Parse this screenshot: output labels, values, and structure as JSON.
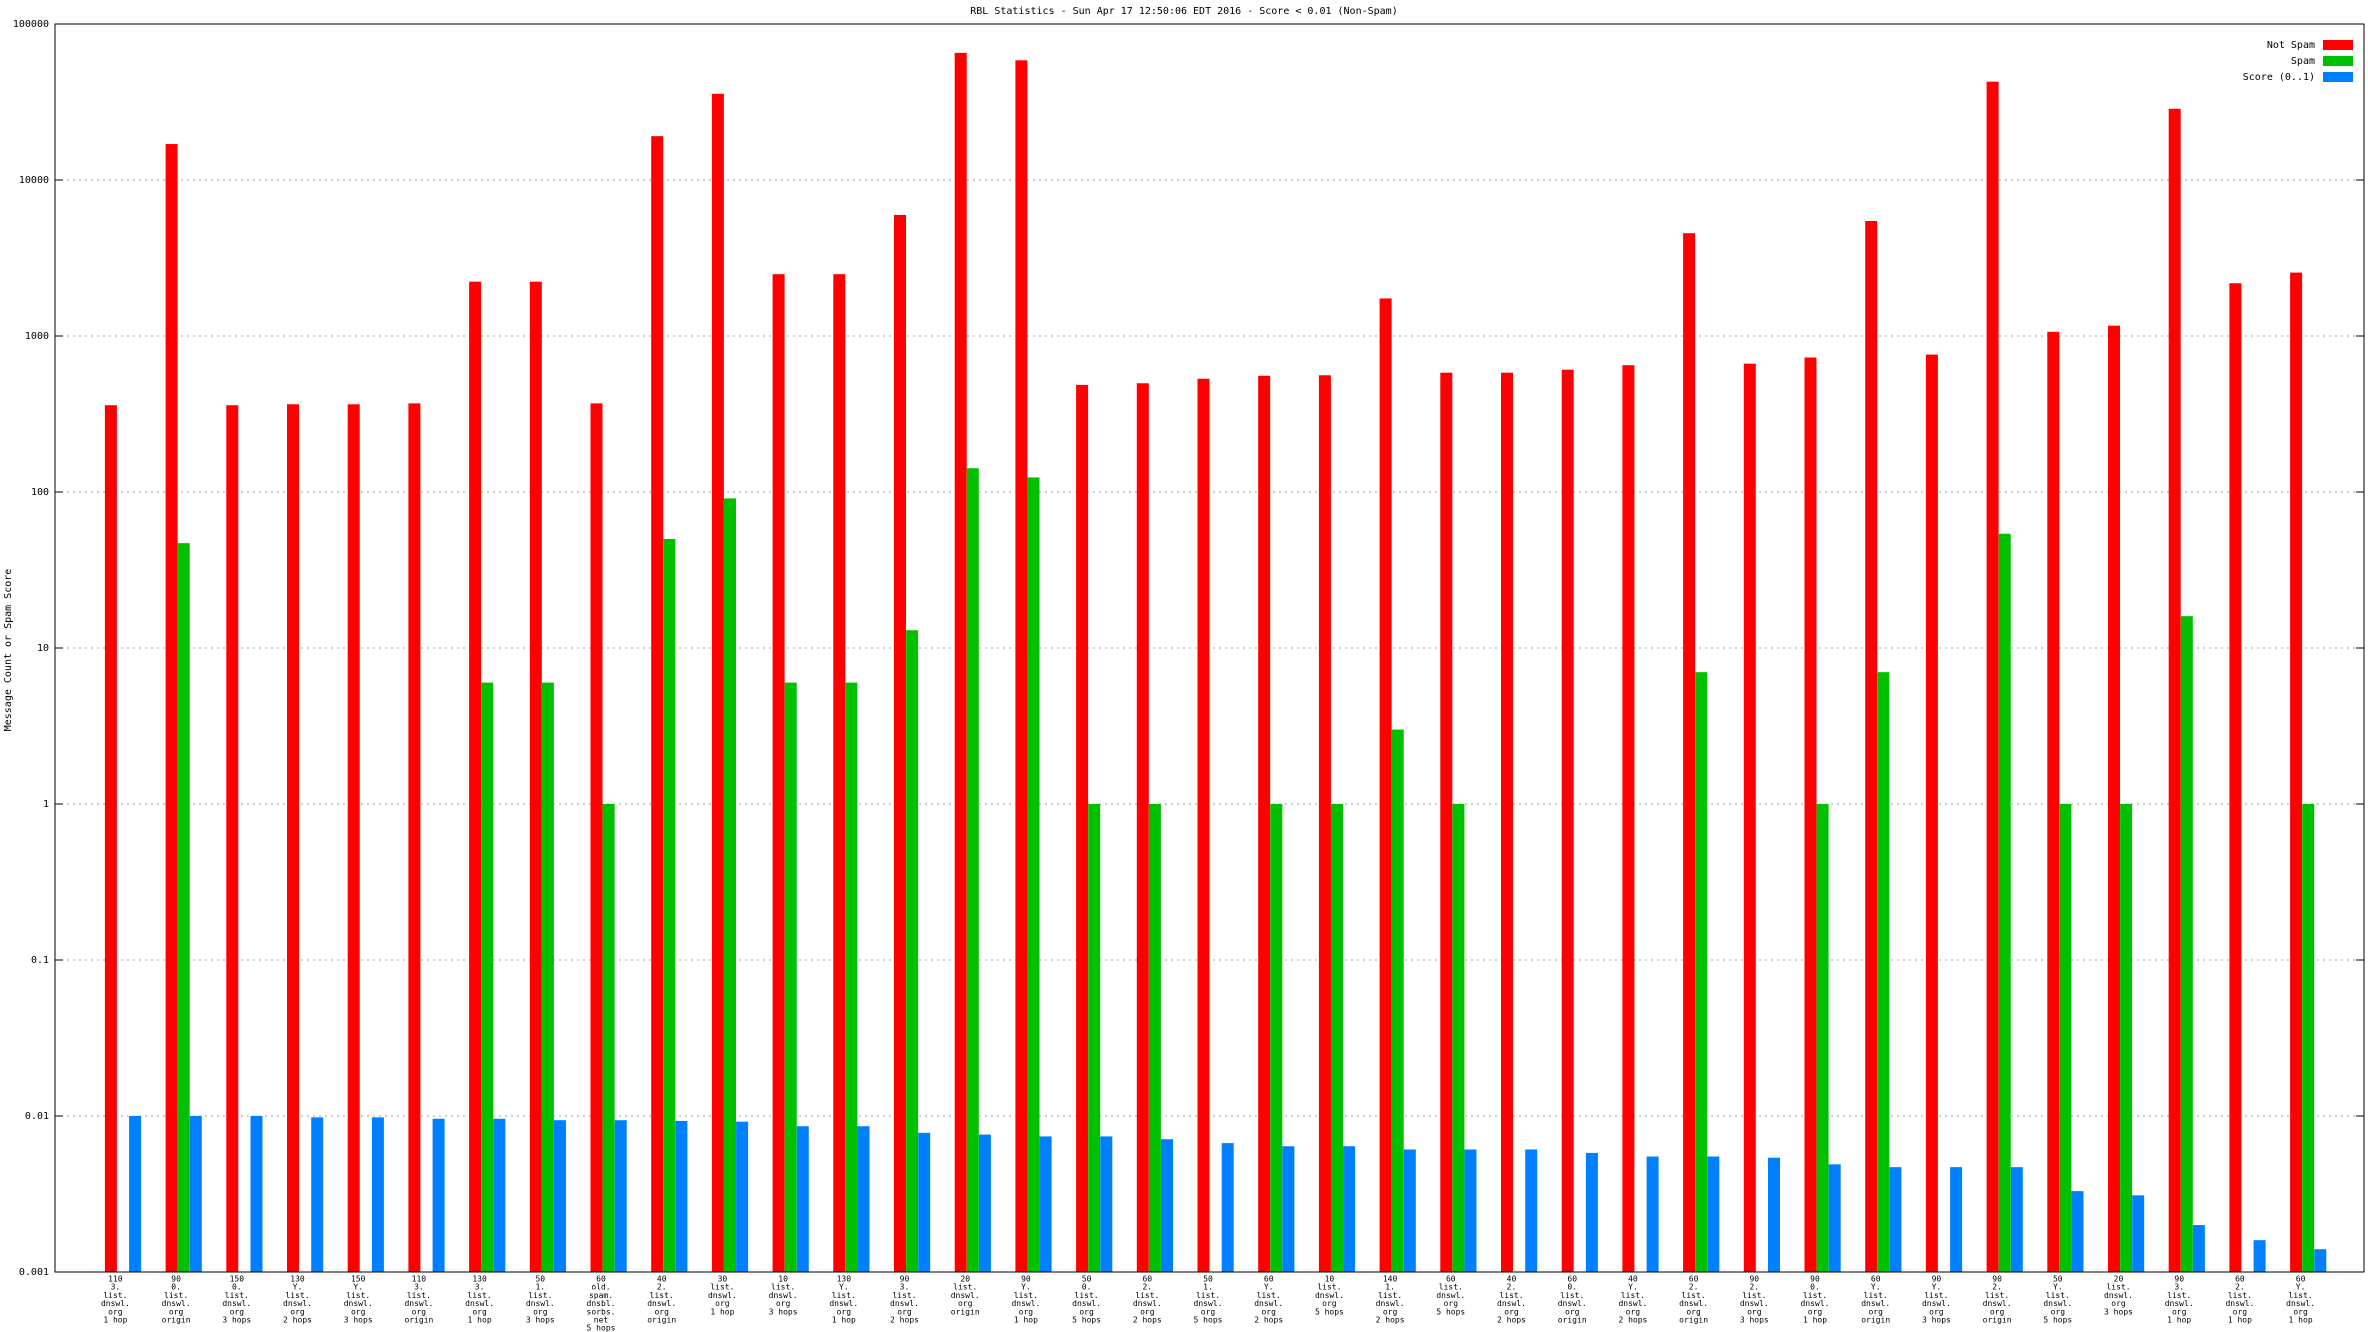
{
  "chart_data": {
    "type": "bar",
    "title": "RBL Statistics - Sun Apr 17 12:50:06 EDT 2016 - Score < 0.01 (Non-Spam)",
    "y_label": "Message Count or Spam Score",
    "log_scale": true,
    "grid": true,
    "legend": "top-right",
    "ylim": [
      0.001,
      100000
    ],
    "yticks": [
      0.001,
      0.01,
      0.1,
      1,
      10,
      100,
      1000,
      10000,
      100000
    ],
    "categories": [
      [
        "110",
        "3.",
        "list.",
        "dnswl.",
        "org",
        "1 hop"
      ],
      [
        "90",
        "0.",
        "list.",
        "dnswl.",
        "org",
        "origin"
      ],
      [
        "150",
        "0.",
        "list.",
        "dnswl.",
        "org",
        "3 hops"
      ],
      [
        "130",
        "Y.",
        "list.",
        "dnswl.",
        "org",
        "2 hops"
      ],
      [
        "150",
        "Y.",
        "list.",
        "dnswl.",
        "org",
        "3 hops"
      ],
      [
        "110",
        "3.",
        "list.",
        "dnswl.",
        "org",
        "origin"
      ],
      [
        "130",
        "3.",
        "list.",
        "dnswl.",
        "org",
        "1 hop"
      ],
      [
        "50",
        "1.",
        "list.",
        "dnswl.",
        "org",
        "3 hops"
      ],
      [
        "60",
        "old.",
        "spam.",
        "dnsbl.",
        "sorbs.",
        "net",
        "5 hops"
      ],
      [
        "40",
        "2.",
        "list.",
        "dnswl.",
        "org",
        "origin"
      ],
      [
        "30",
        "list.",
        "dnswl.",
        "org",
        "1 hop"
      ],
      [
        "10",
        "list.",
        "dnswl.",
        "org",
        "3 hops"
      ],
      [
        "130",
        "Y.",
        "list.",
        "dnswl.",
        "org",
        "1 hop"
      ],
      [
        "90",
        "3.",
        "list.",
        "dnswl.",
        "org",
        "2 hops"
      ],
      [
        "20",
        "list.",
        "dnswl.",
        "org",
        "origin"
      ],
      [
        "90",
        "Y.",
        "list.",
        "dnswl.",
        "org",
        "1 hop"
      ],
      [
        "50",
        "0.",
        "list.",
        "dnswl.",
        "org",
        "5 hops"
      ],
      [
        "60",
        "2.",
        "list.",
        "dnswl.",
        "org",
        "2 hops"
      ],
      [
        "50",
        "1.",
        "list.",
        "dnswl.",
        "org",
        "5 hops"
      ],
      [
        "60",
        "Y.",
        "list.",
        "dnswl.",
        "org",
        "2 hops"
      ],
      [
        "10",
        "list.",
        "dnswl.",
        "org",
        "5 hops"
      ],
      [
        "140",
        "1.",
        "list.",
        "dnswl.",
        "org",
        "2 hops"
      ],
      [
        "60",
        "list.",
        "dnswl.",
        "org",
        "5 hops"
      ],
      [
        "40",
        "2.",
        "list.",
        "dnswl.",
        "org",
        "2 hops"
      ],
      [
        "60",
        "0.",
        "list.",
        "dnswl.",
        "org",
        "origin"
      ],
      [
        "40",
        "Y.",
        "list.",
        "dnswl.",
        "org",
        "2 hops"
      ],
      [
        "60",
        "2.",
        "list.",
        "dnswl.",
        "org",
        "origin"
      ],
      [
        "90",
        "2.",
        "list.",
        "dnswl.",
        "org",
        "3 hops"
      ],
      [
        "90",
        "0.",
        "list.",
        "dnswl.",
        "org",
        "1 hop"
      ],
      [
        "60",
        "Y.",
        "list.",
        "dnswl.",
        "org",
        "origin"
      ],
      [
        "90",
        "Y.",
        "list.",
        "dnswl.",
        "org",
        "3 hops"
      ],
      [
        "90",
        "2.",
        "list.",
        "dnswl.",
        "org",
        "origin"
      ],
      [
        "50",
        "Y.",
        "list.",
        "dnswl.",
        "org",
        "5 hops"
      ],
      [
        "20",
        "list.",
        "dnswl.",
        "org",
        "3 hops"
      ],
      [
        "90",
        "3.",
        "list.",
        "dnswl.",
        "org",
        "1 hop"
      ],
      [
        "60",
        "2.",
        "list.",
        "dnswl.",
        "org",
        "1 hop"
      ],
      [
        "60",
        "Y.",
        "list.",
        "dnswl.",
        "org",
        "1 hop"
      ]
    ],
    "series": [
      {
        "name": "Not Spam",
        "color": "#ff0000",
        "values": [
          360,
          17000,
          360,
          365,
          365,
          370,
          2230,
          2230,
          370,
          19100,
          35700,
          2490,
          2490,
          5970,
          65300,
          58500,
          486,
          498,
          532,
          556,
          560,
          1740,
          582,
          582,
          608,
          650,
          4560,
          665,
          728,
          5460,
          760,
          42700,
          1064,
          1165,
          28600,
          2180,
          2550
        ]
      },
      {
        "name": "Spam",
        "color": "#00c000",
        "values": [
          null,
          47,
          null,
          null,
          null,
          null,
          6,
          6,
          1,
          50,
          91,
          6,
          6,
          13,
          142,
          124,
          1,
          1,
          null,
          1,
          1,
          3,
          1,
          null,
          null,
          null,
          7,
          null,
          1,
          7,
          null,
          54,
          1,
          1,
          16,
          null,
          1
        ]
      },
      {
        "name": "Score (0..1)",
        "color": "#0080ff",
        "values": [
          0.01,
          0.01,
          0.01,
          0.0098,
          0.0098,
          0.0096,
          0.0096,
          0.0094,
          0.0094,
          0.0093,
          0.0092,
          0.0086,
          0.0086,
          0.0078,
          0.0076,
          0.0074,
          0.0074,
          0.0071,
          0.0067,
          0.0064,
          0.0064,
          0.0061,
          0.0061,
          0.0061,
          0.0058,
          0.0055,
          0.0055,
          0.0054,
          0.0049,
          0.0047,
          0.0047,
          0.0047,
          0.0033,
          0.0031,
          0.002,
          0.0016,
          0.0014
        ]
      }
    ]
  }
}
